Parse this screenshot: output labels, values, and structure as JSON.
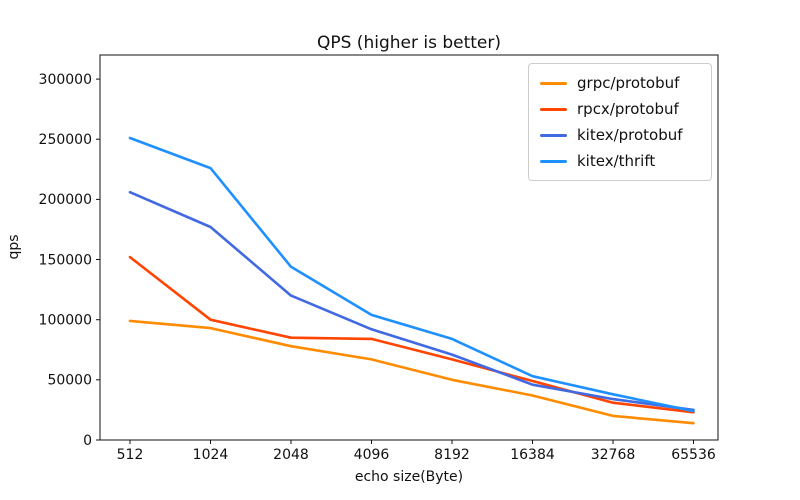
{
  "chart_data": {
    "type": "line",
    "title": "QPS (higher is better)",
    "xlabel": "echo size(Byte)",
    "ylabel": "qps",
    "categories": [
      "512",
      "1024",
      "2048",
      "4096",
      "8192",
      "16384",
      "32768",
      "65536"
    ],
    "series": [
      {
        "name": "grpc/protobuf",
        "color": "#ff8c00",
        "values": [
          99000,
          93000,
          78000,
          67000,
          50000,
          37000,
          20000,
          14000
        ]
      },
      {
        "name": "rpcx/protobuf",
        "color": "#ff4500",
        "values": [
          152000,
          100000,
          85000,
          84000,
          67000,
          49000,
          31000,
          23000
        ]
      },
      {
        "name": "kitex/protobuf",
        "color": "#4169e1",
        "values": [
          206000,
          177000,
          120000,
          92000,
          71000,
          46000,
          34000,
          25000
        ]
      },
      {
        "name": "kitex/thrift",
        "color": "#1e90ff",
        "values": [
          251000,
          226000,
          144000,
          104000,
          84000,
          53000,
          38000,
          24000
        ]
      }
    ],
    "yticks": [
      0,
      50000,
      100000,
      150000,
      200000,
      250000,
      300000
    ],
    "ylim": [
      0,
      320000
    ],
    "grid": false,
    "legend_position": "upper right"
  }
}
